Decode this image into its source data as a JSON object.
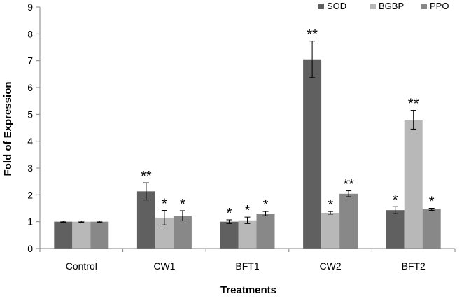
{
  "chart_data": {
    "type": "bar",
    "title": "",
    "xlabel": "Treatments",
    "ylabel": "Fold of Expression",
    "ylim": [
      0,
      9
    ],
    "yticks": [
      0,
      1,
      2,
      3,
      4,
      5,
      6,
      7,
      8,
      9
    ],
    "grid": false,
    "legend_position": "top-right",
    "categories": [
      "Control",
      "CW1",
      "BFT1",
      "CW2",
      "BFT2"
    ],
    "series": [
      {
        "name": "SOD",
        "color": "#606060",
        "values": [
          1.0,
          2.13,
          1.0,
          7.05,
          1.43
        ],
        "errors": [
          0.02,
          0.32,
          0.07,
          0.68,
          0.13
        ],
        "significance": [
          "",
          "**",
          "*",
          "**",
          "*"
        ]
      },
      {
        "name": "BGBP",
        "color": "#b8b8b8",
        "values": [
          1.0,
          1.15,
          1.05,
          1.33,
          4.8
        ],
        "errors": [
          0.02,
          0.27,
          0.12,
          0.05,
          0.35
        ],
        "significance": [
          "",
          "*",
          "*",
          "*",
          "**"
        ]
      },
      {
        "name": "PPO",
        "color": "#888888",
        "values": [
          1.0,
          1.22,
          1.3,
          2.04,
          1.46
        ],
        "errors": [
          0.02,
          0.19,
          0.08,
          0.11,
          0.04
        ],
        "significance": [
          "",
          "*",
          "*",
          "**",
          "*"
        ]
      }
    ]
  }
}
